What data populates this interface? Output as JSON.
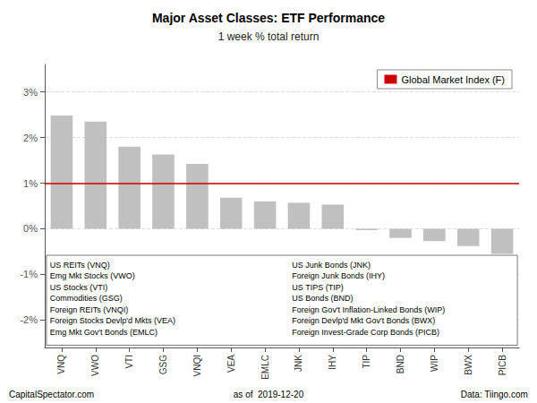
{
  "chart_data": {
    "type": "bar",
    "title": "Major Asset Classes: ETF Performance",
    "subtitle": "1 week % total return",
    "categories": [
      "VNQ",
      "VWO",
      "VTI",
      "GSG",
      "VNQI",
      "VEA",
      "EMLC",
      "JNK",
      "IHY",
      "TIP",
      "BND",
      "WIP",
      "BWX",
      "PICB"
    ],
    "values": [
      2.48,
      2.35,
      1.8,
      1.63,
      1.42,
      0.68,
      0.6,
      0.57,
      0.53,
      -0.03,
      -0.2,
      -0.27,
      -0.38,
      -0.55
    ],
    "color": "#c0c0c0",
    "ylim": [
      -2.6,
      3.6
    ],
    "yticks": [
      {
        "value": -2,
        "label": "-2%"
      },
      {
        "value": -1,
        "label": "-1%"
      },
      {
        "value": 0,
        "label": "0%"
      },
      {
        "value": 1,
        "label": "1%"
      },
      {
        "value": 2,
        "label": "2%"
      },
      {
        "value": 3,
        "label": "3%"
      }
    ],
    "grid": true,
    "legend": "upper right",
    "reference_line": {
      "name": "Global Market Index (F)",
      "value": 1.0,
      "color": "#cc0000"
    },
    "annotations": {
      "left_column": [
        "US REITs (VNQ)",
        "Emg Mkt Stocks (VWO)",
        "US Stocks (VTI)",
        "Commodities (GSG)",
        "Foreign REITs (VNQI)",
        "Foreign Stocks Devlp'd Mkts (VEA)",
        "Emg Mkt Gov't Bonds (EMLC)"
      ],
      "right_column": [
        "US Junk Bonds (JNK)",
        "Foreign Junk Bonds (IHY)",
        "US TIPS (TIP)",
        "US Bonds (BND)",
        "Foreign Gov't Inflation-Linked Bonds (WIP)",
        "Foreign Devlp'd Mkt Gov't Bonds (BWX)",
        "Foreign Invest-Grade Corp Bonds (PICB)"
      ]
    },
    "footnotes": {
      "left": "CapitalSpectator.com",
      "center": "as of  2019-12-20",
      "right": "Data: Tiingo.com"
    }
  }
}
